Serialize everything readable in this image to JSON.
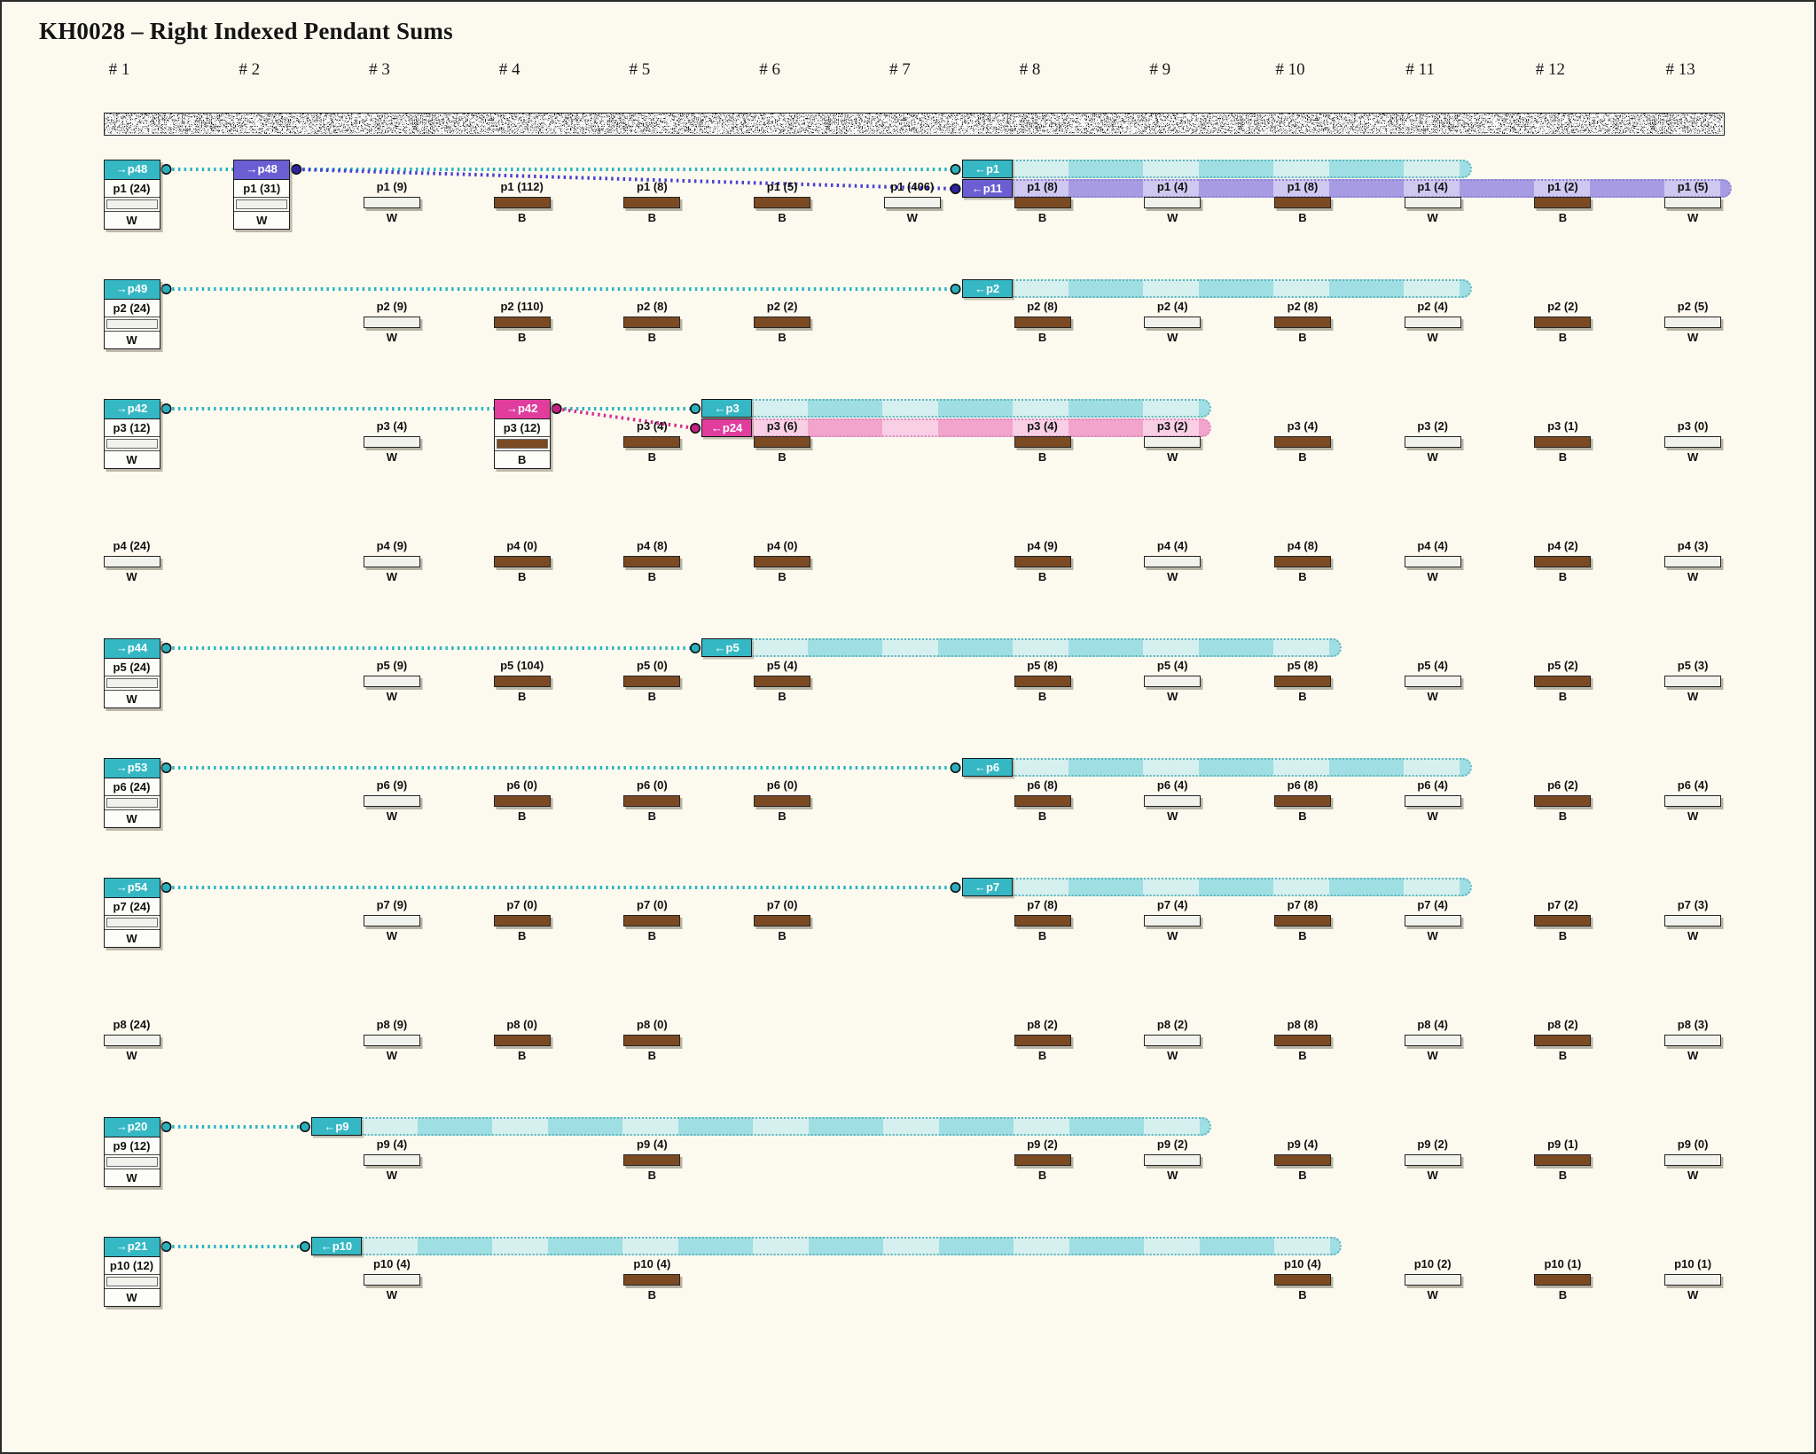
{
  "title": "KH0028 – Right Indexed Pendant Sums",
  "columns": [
    "# 1",
    "# 2",
    "# 3",
    "# 4",
    "# 5",
    "# 6",
    "# 7",
    "# 8",
    "# 9",
    "# 10",
    "# 11",
    "# 12",
    "# 13"
  ],
  "colors": {
    "background": "#fcfaef",
    "teal": "#35b8c4",
    "purple": "#6b5ed2",
    "pink": "#e03d9d",
    "bar_B": "#7b4a23",
    "bar_W": "#f2f2ec",
    "line_teal": "#29b4c2",
    "line_purple": "#4b3fd1",
    "line_pink": "#d62e92"
  },
  "rows": [
    {
      "pendant": "p1",
      "cells": [
        {
          "col": 1,
          "label": "p1 (24)",
          "bar": "W",
          "boxed": true,
          "tag": {
            "text": "→p48",
            "color": "teal"
          }
        },
        {
          "col": 2,
          "label": "p1 (31)",
          "bar": "W",
          "boxed": true,
          "tag": {
            "text": "→p48",
            "color": "purple"
          }
        },
        {
          "col": 3,
          "label": "p1 (9)",
          "bar": "W"
        },
        {
          "col": 4,
          "label": "p1 (112)",
          "bar": "B"
        },
        {
          "col": 5,
          "label": "p1 (8)",
          "bar": "B"
        },
        {
          "col": 6,
          "label": "p1 (5)",
          "bar": "B"
        },
        {
          "col": 7,
          "label": "p1 (406)",
          "bar": "W"
        },
        {
          "col": 8,
          "label": "p1 (8)",
          "bar": "B",
          "in_tags": [
            {
              "text": "←p1",
              "color": "teal"
            },
            {
              "text": "←p11",
              "color": "purple"
            }
          ]
        },
        {
          "col": 9,
          "label": "p1 (4)",
          "bar": "W"
        },
        {
          "col": 10,
          "label": "p1 (8)",
          "bar": "B"
        },
        {
          "col": 11,
          "label": "p1 (4)",
          "bar": "W"
        },
        {
          "col": 12,
          "label": "p1 (2)",
          "bar": "B"
        },
        {
          "col": 13,
          "label": "p1 (5)",
          "bar": "W"
        }
      ],
      "links": [
        {
          "color": "teal",
          "from_col": 1,
          "to_col": 8,
          "to_level": 0
        },
        {
          "color": "purple",
          "from_col": 2,
          "to_col": 8,
          "to_level": 1
        }
      ],
      "ribbons": [
        {
          "color": "teal",
          "from_col": 8,
          "to_col": 11,
          "level": 0
        },
        {
          "color": "purple",
          "from_col": 8,
          "to_col": 13,
          "level": 1
        }
      ]
    },
    {
      "pendant": "p2",
      "cells": [
        {
          "col": 1,
          "label": "p2 (24)",
          "bar": "W",
          "boxed": true,
          "tag": {
            "text": "→p49",
            "color": "teal"
          }
        },
        {
          "col": 3,
          "label": "p2 (9)",
          "bar": "W"
        },
        {
          "col": 4,
          "label": "p2 (110)",
          "bar": "B"
        },
        {
          "col": 5,
          "label": "p2 (8)",
          "bar": "B"
        },
        {
          "col": 6,
          "label": "p2 (2)",
          "bar": "B"
        },
        {
          "col": 8,
          "label": "p2 (8)",
          "bar": "B",
          "in_tags": [
            {
              "text": "←p2",
              "color": "teal"
            }
          ]
        },
        {
          "col": 9,
          "label": "p2 (4)",
          "bar": "W"
        },
        {
          "col": 10,
          "label": "p2 (8)",
          "bar": "B"
        },
        {
          "col": 11,
          "label": "p2 (4)",
          "bar": "W"
        },
        {
          "col": 12,
          "label": "p2 (2)",
          "bar": "B"
        },
        {
          "col": 13,
          "label": "p2 (5)",
          "bar": "W"
        }
      ],
      "links": [
        {
          "color": "teal",
          "from_col": 1,
          "to_col": 8,
          "to_level": 0
        }
      ],
      "ribbons": [
        {
          "color": "teal",
          "from_col": 8,
          "to_col": 11,
          "level": 0
        }
      ]
    },
    {
      "pendant": "p3",
      "cells": [
        {
          "col": 1,
          "label": "p3 (12)",
          "bar": "W",
          "boxed": true,
          "tag": {
            "text": "→p42",
            "color": "teal"
          }
        },
        {
          "col": 3,
          "label": "p3 (4)",
          "bar": "W"
        },
        {
          "col": 4,
          "label": "p3 (12)",
          "bar": "B",
          "boxed": true,
          "tag": {
            "text": "→p42",
            "color": "pink"
          }
        },
        {
          "col": 5,
          "label": "p3 (4)",
          "bar": "B"
        },
        {
          "col": 6,
          "label": "p3 (6)",
          "bar": "B",
          "in_tags": [
            {
              "text": "←p3",
              "color": "teal"
            },
            {
              "text": "←p24",
              "color": "pink"
            }
          ]
        },
        {
          "col": 8,
          "label": "p3 (4)",
          "bar": "B"
        },
        {
          "col": 9,
          "label": "p3 (2)",
          "bar": "W"
        },
        {
          "col": 10,
          "label": "p3 (4)",
          "bar": "B"
        },
        {
          "col": 11,
          "label": "p3 (2)",
          "bar": "W"
        },
        {
          "col": 12,
          "label": "p3 (1)",
          "bar": "B"
        },
        {
          "col": 13,
          "label": "p3 (0)",
          "bar": "W"
        }
      ],
      "links": [
        {
          "color": "teal",
          "from_col": 1,
          "to_col": 6,
          "to_level": 0
        },
        {
          "color": "pink",
          "from_col": 4,
          "to_col": 6,
          "to_level": 1
        }
      ],
      "ribbons": [
        {
          "color": "teal",
          "from_col": 6,
          "to_col": 9,
          "level": 0
        },
        {
          "color": "pink",
          "from_col": 6,
          "to_col": 9,
          "level": 1
        }
      ]
    },
    {
      "pendant": "p4",
      "cells": [
        {
          "col": 1,
          "label": "p4 (24)",
          "bar": "W"
        },
        {
          "col": 3,
          "label": "p4 (9)",
          "bar": "W"
        },
        {
          "col": 4,
          "label": "p4 (0)",
          "bar": "B"
        },
        {
          "col": 5,
          "label": "p4 (8)",
          "bar": "B"
        },
        {
          "col": 6,
          "label": "p4 (0)",
          "bar": "B"
        },
        {
          "col": 8,
          "label": "p4 (9)",
          "bar": "B"
        },
        {
          "col": 9,
          "label": "p4 (4)",
          "bar": "W"
        },
        {
          "col": 10,
          "label": "p4 (8)",
          "bar": "B"
        },
        {
          "col": 11,
          "label": "p4 (4)",
          "bar": "W"
        },
        {
          "col": 12,
          "label": "p4 (2)",
          "bar": "B"
        },
        {
          "col": 13,
          "label": "p4 (3)",
          "bar": "W"
        }
      ],
      "links": [],
      "ribbons": []
    },
    {
      "pendant": "p5",
      "cells": [
        {
          "col": 1,
          "label": "p5 (24)",
          "bar": "W",
          "boxed": true,
          "tag": {
            "text": "→p44",
            "color": "teal"
          }
        },
        {
          "col": 3,
          "label": "p5 (9)",
          "bar": "W"
        },
        {
          "col": 4,
          "label": "p5 (104)",
          "bar": "B"
        },
        {
          "col": 5,
          "label": "p5 (0)",
          "bar": "B"
        },
        {
          "col": 6,
          "label": "p5 (4)",
          "bar": "B",
          "in_tags": [
            {
              "text": "←p5",
              "color": "teal"
            }
          ]
        },
        {
          "col": 8,
          "label": "p5 (8)",
          "bar": "B"
        },
        {
          "col": 9,
          "label": "p5 (4)",
          "bar": "W"
        },
        {
          "col": 10,
          "label": "p5 (8)",
          "bar": "B"
        },
        {
          "col": 11,
          "label": "p5 (4)",
          "bar": "W"
        },
        {
          "col": 12,
          "label": "p5 (2)",
          "bar": "B"
        },
        {
          "col": 13,
          "label": "p5 (3)",
          "bar": "W"
        }
      ],
      "links": [
        {
          "color": "teal",
          "from_col": 1,
          "to_col": 6,
          "to_level": 0
        }
      ],
      "ribbons": [
        {
          "color": "teal",
          "from_col": 6,
          "to_col": 10,
          "level": 0
        }
      ]
    },
    {
      "pendant": "p6",
      "cells": [
        {
          "col": 1,
          "label": "p6 (24)",
          "bar": "W",
          "boxed": true,
          "tag": {
            "text": "→p53",
            "color": "teal"
          }
        },
        {
          "col": 3,
          "label": "p6 (9)",
          "bar": "W"
        },
        {
          "col": 4,
          "label": "p6 (0)",
          "bar": "B"
        },
        {
          "col": 5,
          "label": "p6 (0)",
          "bar": "B"
        },
        {
          "col": 6,
          "label": "p6 (0)",
          "bar": "B"
        },
        {
          "col": 8,
          "label": "p6 (8)",
          "bar": "B",
          "in_tags": [
            {
              "text": "←p6",
              "color": "teal"
            }
          ]
        },
        {
          "col": 9,
          "label": "p6 (4)",
          "bar": "W"
        },
        {
          "col": 10,
          "label": "p6 (8)",
          "bar": "B"
        },
        {
          "col": 11,
          "label": "p6 (4)",
          "bar": "W"
        },
        {
          "col": 12,
          "label": "p6 (2)",
          "bar": "B"
        },
        {
          "col": 13,
          "label": "p6 (4)",
          "bar": "W"
        }
      ],
      "links": [
        {
          "color": "teal",
          "from_col": 1,
          "to_col": 8,
          "to_level": 0
        }
      ],
      "ribbons": [
        {
          "color": "teal",
          "from_col": 8,
          "to_col": 11,
          "level": 0
        }
      ]
    },
    {
      "pendant": "p7",
      "cells": [
        {
          "col": 1,
          "label": "p7 (24)",
          "bar": "W",
          "boxed": true,
          "tag": {
            "text": "→p54",
            "color": "teal"
          }
        },
        {
          "col": 3,
          "label": "p7 (9)",
          "bar": "W"
        },
        {
          "col": 4,
          "label": "p7 (0)",
          "bar": "B"
        },
        {
          "col": 5,
          "label": "p7 (0)",
          "bar": "B"
        },
        {
          "col": 6,
          "label": "p7 (0)",
          "bar": "B"
        },
        {
          "col": 8,
          "label": "p7 (8)",
          "bar": "B",
          "in_tags": [
            {
              "text": "←p7",
              "color": "teal"
            }
          ]
        },
        {
          "col": 9,
          "label": "p7 (4)",
          "bar": "W"
        },
        {
          "col": 10,
          "label": "p7 (8)",
          "bar": "B"
        },
        {
          "col": 11,
          "label": "p7 (4)",
          "bar": "W"
        },
        {
          "col": 12,
          "label": "p7 (2)",
          "bar": "B"
        },
        {
          "col": 13,
          "label": "p7 (3)",
          "bar": "W"
        }
      ],
      "links": [
        {
          "color": "teal",
          "from_col": 1,
          "to_col": 8,
          "to_level": 0
        }
      ],
      "ribbons": [
        {
          "color": "teal",
          "from_col": 8,
          "to_col": 11,
          "level": 0
        }
      ]
    },
    {
      "pendant": "p8",
      "cells": [
        {
          "col": 1,
          "label": "p8 (24)",
          "bar": "W"
        },
        {
          "col": 3,
          "label": "p8 (9)",
          "bar": "W"
        },
        {
          "col": 4,
          "label": "p8 (0)",
          "bar": "B"
        },
        {
          "col": 5,
          "label": "p8 (0)",
          "bar": "B"
        },
        {
          "col": 8,
          "label": "p8 (2)",
          "bar": "B"
        },
        {
          "col": 9,
          "label": "p8 (2)",
          "bar": "W"
        },
        {
          "col": 10,
          "label": "p8 (8)",
          "bar": "B"
        },
        {
          "col": 11,
          "label": "p8 (4)",
          "bar": "W"
        },
        {
          "col": 12,
          "label": "p8 (2)",
          "bar": "B"
        },
        {
          "col": 13,
          "label": "p8 (3)",
          "bar": "W"
        }
      ],
      "links": [],
      "ribbons": []
    },
    {
      "pendant": "p9",
      "cells": [
        {
          "col": 1,
          "label": "p9 (12)",
          "bar": "W",
          "boxed": true,
          "tag": {
            "text": "→p20",
            "color": "teal"
          }
        },
        {
          "col": 3,
          "label": "p9 (4)",
          "bar": "W",
          "in_tags": [
            {
              "text": "←p9",
              "color": "teal"
            }
          ]
        },
        {
          "col": 5,
          "label": "p9 (4)",
          "bar": "B"
        },
        {
          "col": 8,
          "label": "p9 (2)",
          "bar": "B"
        },
        {
          "col": 9,
          "label": "p9 (2)",
          "bar": "W"
        },
        {
          "col": 10,
          "label": "p9 (4)",
          "bar": "B"
        },
        {
          "col": 11,
          "label": "p9 (2)",
          "bar": "W"
        },
        {
          "col": 12,
          "label": "p9 (1)",
          "bar": "B"
        },
        {
          "col": 13,
          "label": "p9 (0)",
          "bar": "W"
        }
      ],
      "links": [
        {
          "color": "teal",
          "from_col": 1,
          "to_col": 3,
          "to_level": 0
        }
      ],
      "ribbons": [
        {
          "color": "teal",
          "from_col": 3,
          "to_col": 9,
          "level": 0
        }
      ]
    },
    {
      "pendant": "p10",
      "cells": [
        {
          "col": 1,
          "label": "p10 (12)",
          "bar": "W",
          "boxed": true,
          "tag": {
            "text": "→p21",
            "color": "teal"
          }
        },
        {
          "col": 3,
          "label": "p10 (4)",
          "bar": "W",
          "in_tags": [
            {
              "text": "←p10",
              "color": "teal"
            }
          ]
        },
        {
          "col": 5,
          "label": "p10 (4)",
          "bar": "B"
        },
        {
          "col": 10,
          "label": "p10 (4)",
          "bar": "B"
        },
        {
          "col": 11,
          "label": "p10 (2)",
          "bar": "W"
        },
        {
          "col": 12,
          "label": "p10 (1)",
          "bar": "B"
        },
        {
          "col": 13,
          "label": "p10 (1)",
          "bar": "W"
        }
      ],
      "links": [
        {
          "color": "teal",
          "from_col": 1,
          "to_col": 3,
          "to_level": 0
        }
      ],
      "ribbons": [
        {
          "color": "teal",
          "from_col": 3,
          "to_col": 10,
          "level": 0
        }
      ]
    }
  ]
}
